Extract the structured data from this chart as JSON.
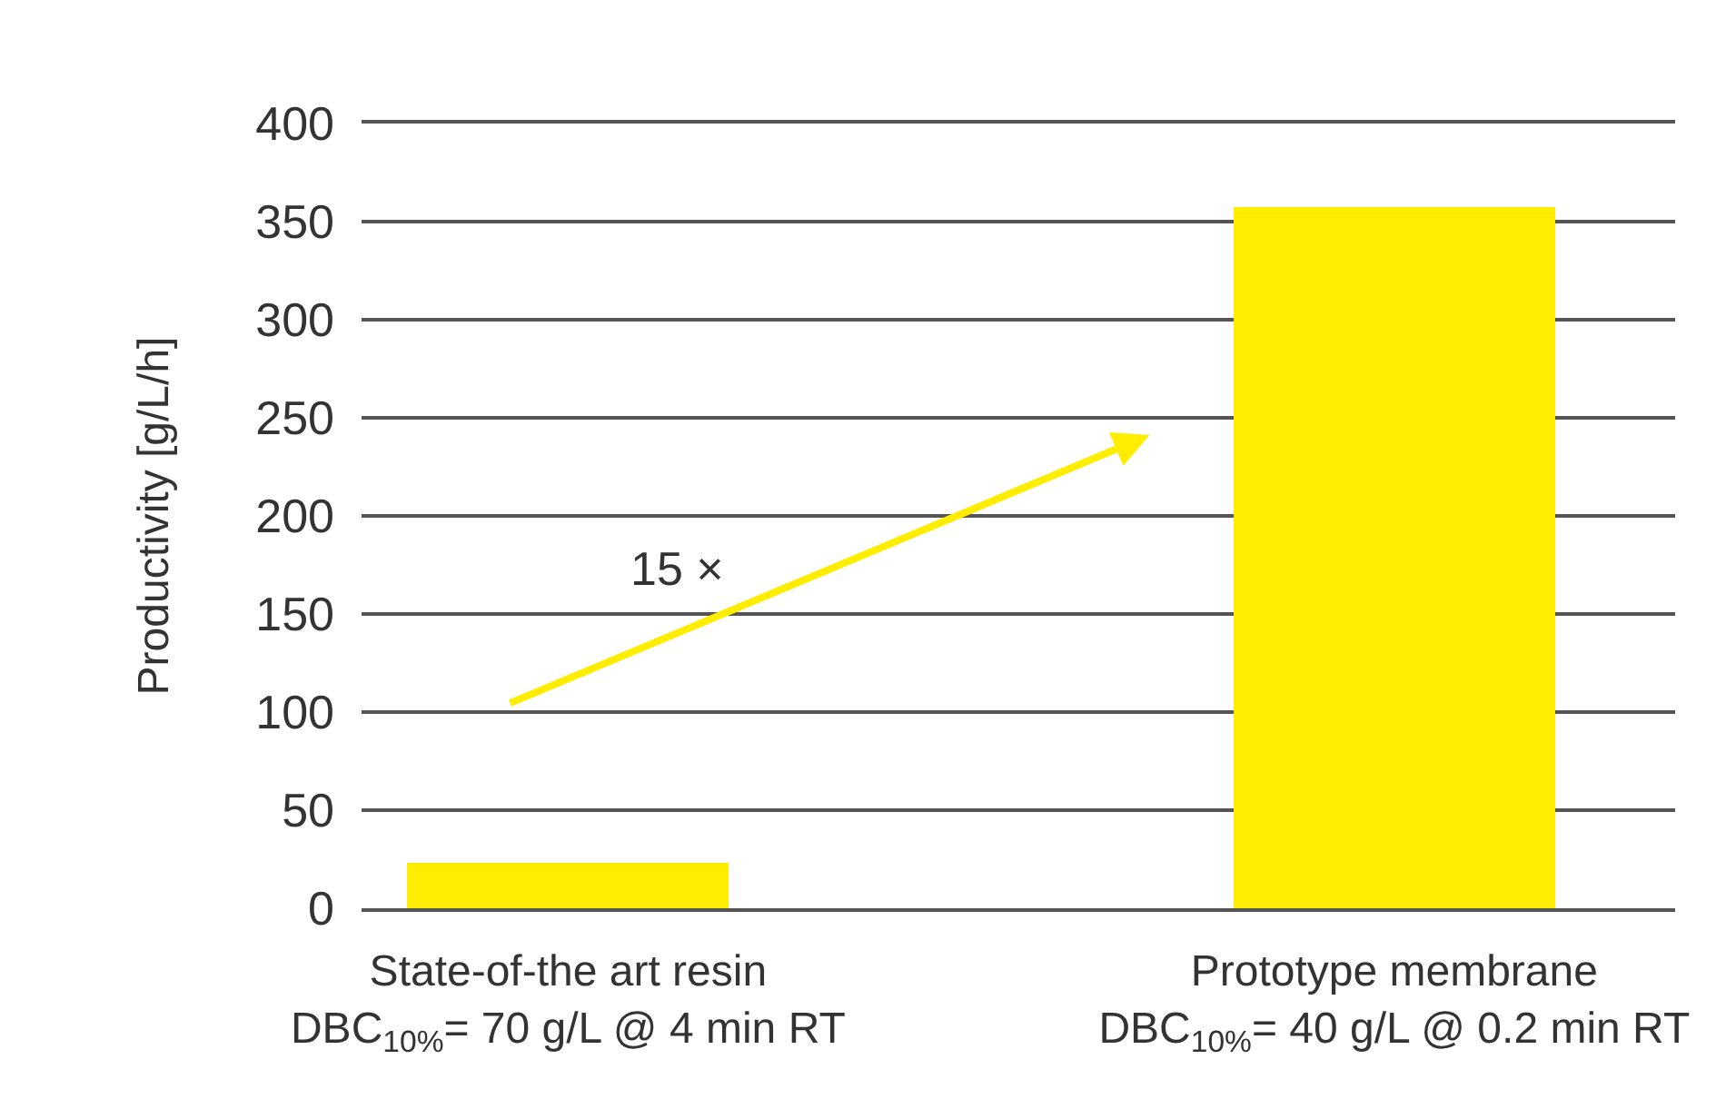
{
  "chart_data": {
    "type": "bar",
    "ylabel": "Productivity [g/L/h]",
    "categories": [
      "State-of-the art resin\nDBC$_{10%}$= 70 g/L @ 4 min RT",
      "Prototype membrane\nDBC$_{10%}$= 40 g/L @ 0.2 min RT"
    ],
    "values": [
      23,
      357
    ],
    "color": "#ffed00",
    "ylim": [
      0,
      400
    ],
    "yticks": [
      0,
      50,
      100,
      150,
      200,
      250,
      300,
      350,
      400
    ],
    "grid": "y",
    "annotations": [
      "15 ×"
    ]
  }
}
